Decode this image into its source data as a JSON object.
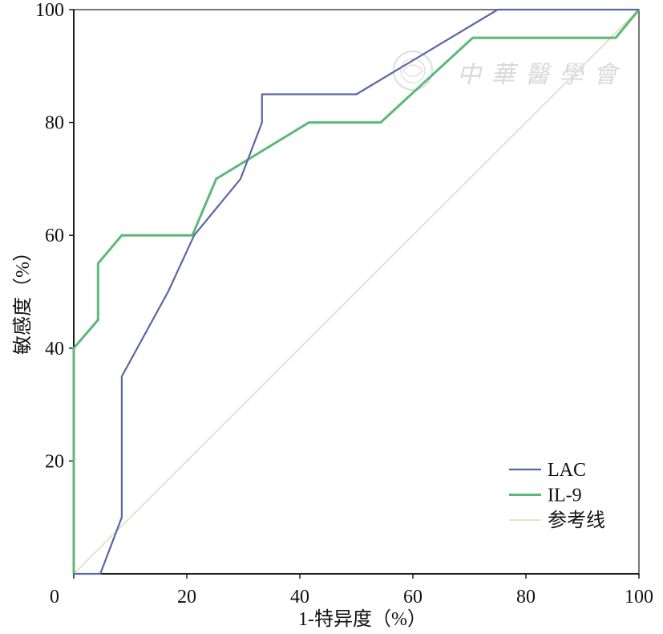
{
  "chart_data": {
    "type": "line",
    "title": "",
    "xlabel": "1-特异度（%）",
    "ylabel": "敏感度（%）",
    "xlim": [
      0,
      100
    ],
    "ylim": [
      0,
      100
    ],
    "x_ticks": [
      0,
      20,
      40,
      60,
      80,
      100
    ],
    "y_ticks": [
      20,
      40,
      60,
      80,
      100
    ],
    "grid": false,
    "legend_position": "bottom-right",
    "series": [
      {
        "name": "LAC",
        "color": "#5a66a6",
        "x": [
          0,
          4.7,
          8.5,
          8.5,
          16.7,
          21.3,
          29.5,
          33.3,
          33.3,
          50,
          75,
          100
        ],
        "y": [
          0,
          0,
          10,
          35,
          50,
          60,
          70,
          80,
          85,
          85,
          100,
          100
        ]
      },
      {
        "name": "IL-9",
        "color": "#5cb878",
        "x": [
          0,
          0,
          4.3,
          4.3,
          8.5,
          21,
          25.2,
          41.6,
          54.3,
          70.6,
          95.9,
          100
        ],
        "y": [
          0,
          40,
          45,
          55,
          60,
          60,
          70,
          80,
          80,
          95,
          95,
          100
        ]
      },
      {
        "name": "参考线",
        "color": "#e0e5c6",
        "x": [
          0,
          100
        ],
        "y": [
          0,
          100
        ]
      }
    ]
  },
  "watermark": {
    "text": "中華醫學會"
  }
}
